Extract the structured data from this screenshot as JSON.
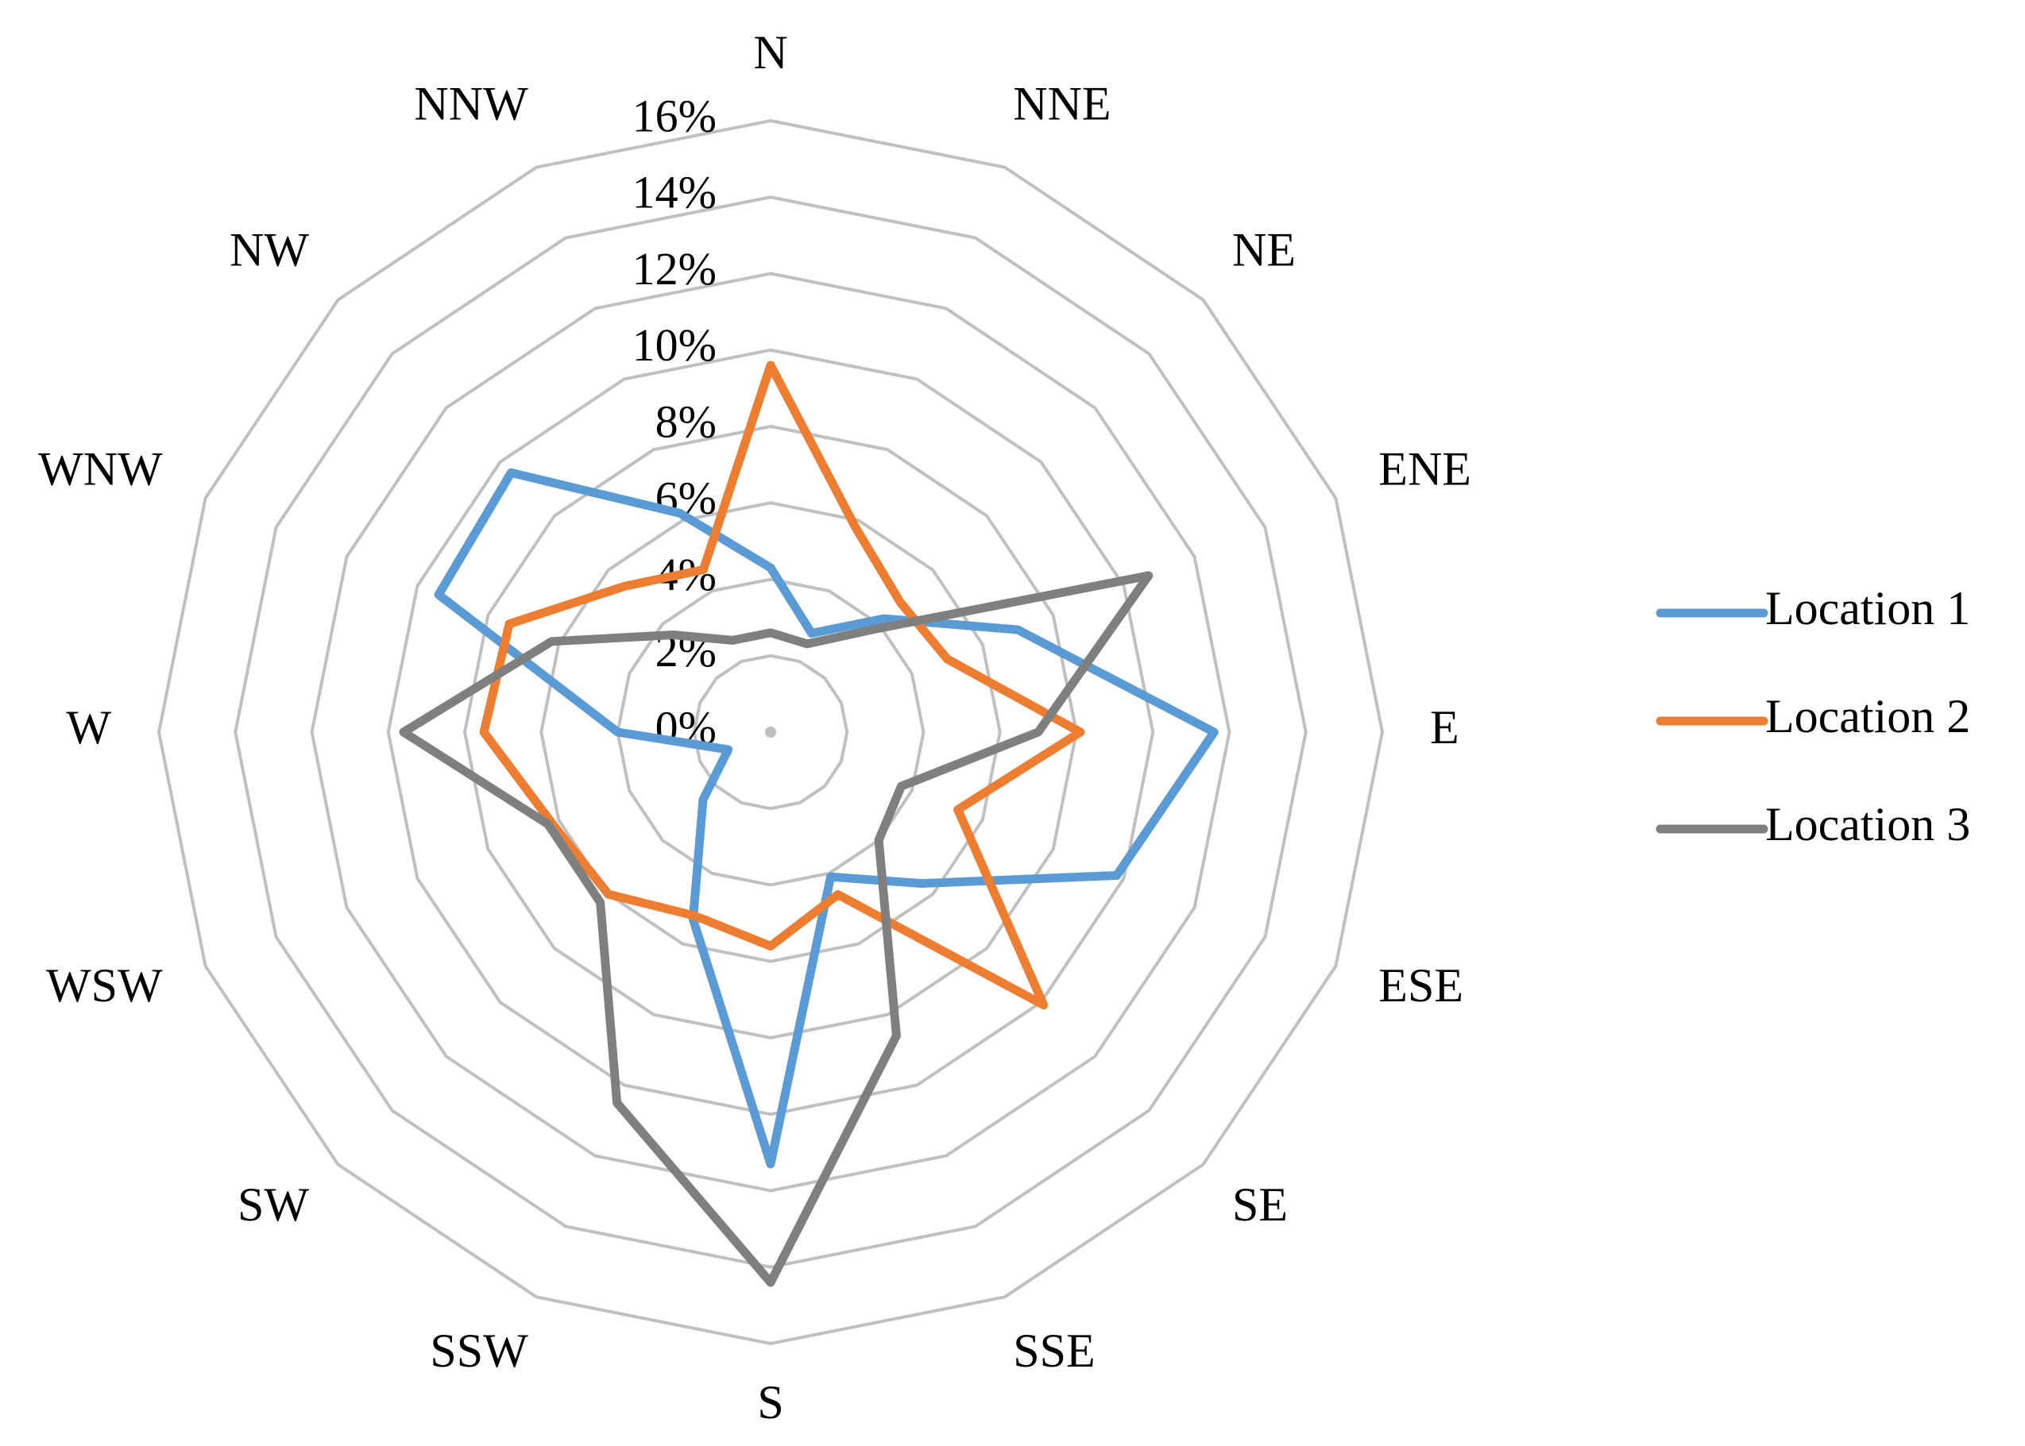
{
  "chart_data": {
    "type": "radar",
    "title": "",
    "categories": [
      "N",
      "NNE",
      "NE",
      "ENE",
      "E",
      "ESE",
      "SE",
      "SSE",
      "S",
      "SSW",
      "SW",
      "WSW",
      "W",
      "WNW",
      "NW",
      "NNW"
    ],
    "ylim": [
      0,
      16
    ],
    "ticks": [
      "0%",
      "2%",
      "4%",
      "6%",
      "8%",
      "10%",
      "12%",
      "14%",
      "16%"
    ],
    "tick_values": [
      0,
      2,
      4,
      6,
      8,
      10,
      12,
      14,
      16
    ],
    "grid": true,
    "legend_position": "right",
    "series": [
      {
        "name": "Location 1",
        "color": "#5b9bd5",
        "values": [
          4.3,
          2.8,
          4.2,
          7.0,
          11.6,
          9.8,
          5.6,
          4.1,
          11.3,
          5.3,
          2.5,
          1.2,
          4.0,
          9.4,
          9.6,
          6.2
        ]
      },
      {
        "name": "Location 2",
        "color": "#ed7d31",
        "values": [
          9.6,
          5.8,
          4.8,
          5.0,
          8.1,
          5.3,
          10.1,
          4.6,
          5.6,
          5.2,
          6.0,
          6.2,
          7.5,
          7.4,
          5.4,
          4.6
        ]
      },
      {
        "name": "Location 3",
        "color": "#7f7f7f",
        "values": [
          2.6,
          2.5,
          3.8,
          10.7,
          7.0,
          3.7,
          4.0,
          8.6,
          14.4,
          10.5,
          6.3,
          6.3,
          9.6,
          6.2,
          3.6,
          2.6
        ]
      }
    ]
  }
}
